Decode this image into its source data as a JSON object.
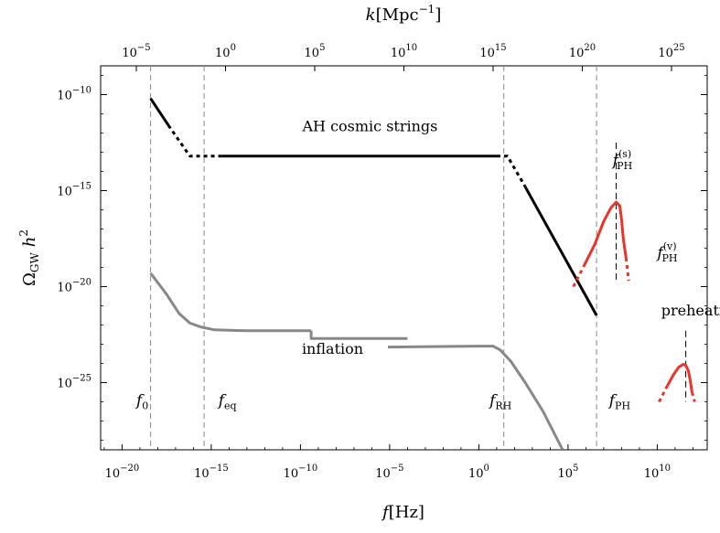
{
  "chart_data": {
    "type": "line",
    "xlabel": "f[Hz]",
    "ylabel": "Ω_GW h^2",
    "top_axis_label": "k[Mpc^-1]",
    "x_scale": "log",
    "y_scale": "log",
    "xlim_log10": [
      -21.2,
      12.8
    ],
    "ylim_log10": [
      -28.5,
      -8.5
    ],
    "x_ticks_log10": [
      -20,
      -15,
      -10,
      -5,
      0,
      5,
      10
    ],
    "x_tick_labels": [
      "10",
      "10",
      "10",
      "10",
      "10",
      "10",
      "10"
    ],
    "x_tick_exps": [
      "−20",
      "−15",
      "−10",
      "−5",
      "0",
      "5",
      "10"
    ],
    "y_ticks_log10": [
      -10,
      -15,
      -20,
      -25
    ],
    "y_tick_labels": [
      "10",
      "10",
      "10",
      "10"
    ],
    "y_tick_exps": [
      "−10",
      "−15",
      "−20",
      "−25"
    ],
    "top_ticks_f_log10": [
      -19.2,
      -14.2,
      -9.2,
      -4.2,
      0.8,
      5.8,
      10.8
    ],
    "top_tick_labels": [
      "10",
      "10",
      "10",
      "10",
      "10",
      "10",
      "10"
    ],
    "top_tick_exps": [
      "−5",
      "0",
      "5",
      "10",
      "15",
      "20",
      "25"
    ],
    "grid": false,
    "legend": "none",
    "colors": {
      "strings": "#000000",
      "inflation": "#888888",
      "preheating": "#e8342a",
      "guides": "#888888"
    },
    "vlines_log10_f": [
      -18.4,
      -15.4,
      1.4,
      6.6
    ],
    "vline_labels": [
      {
        "main": "f",
        "sub": "0",
        "x": -19.2,
        "y": -26.2
      },
      {
        "main": "f",
        "sub": "eq",
        "x": -14.6,
        "y": -26.2
      },
      {
        "main": "f",
        "sub": "RH",
        "x": 0.6,
        "y": -26.2
      },
      {
        "main": "f",
        "sub": "PH",
        "x": 7.3,
        "y": -26.2
      }
    ],
    "peak_markers": [
      {
        "x": 7.7,
        "y_from": -19.7,
        "y_to": -12.5
      },
      {
        "x": 11.6,
        "y_from": -26.0,
        "y_to": -22.3
      }
    ],
    "peak_labels": [
      {
        "main": "f",
        "sub": "PH",
        "sup": "(s)",
        "x": 7.5,
        "y": -13.7
      },
      {
        "main": "f",
        "sub": "PH",
        "sup": "(v)",
        "x": 10.0,
        "y": -18.5
      }
    ],
    "series_labels": [
      {
        "text": "AH cosmic strings",
        "color": "#000000",
        "x": -6.1,
        "y": -11.9,
        "anchor": "middle"
      },
      {
        "text": "inflation",
        "color": "#888888",
        "x": -8.2,
        "y": -23.5,
        "anchor": "middle"
      },
      {
        "text": "preheating",
        "color": "#e8342a",
        "x": 12.5,
        "y": -21.5,
        "anchor": "middle"
      }
    ],
    "series": [
      {
        "name": "AH cosmic strings",
        "color": "#000000",
        "style": "solid",
        "width": 3,
        "points": [
          [
            -18.4,
            -10.2
          ],
          [
            -17.4,
            -11.6
          ]
        ]
      },
      {
        "name": "AH cosmic strings",
        "color": "#000000",
        "style": "dotted",
        "width": 3,
        "points": [
          [
            -17.4,
            -11.6
          ],
          [
            -16.2,
            -13.2
          ],
          [
            -14.4,
            -13.2
          ]
        ]
      },
      {
        "name": "AH cosmic strings",
        "color": "#000000",
        "style": "solid",
        "width": 3,
        "points": [
          [
            -14.4,
            -13.2
          ],
          [
            1.0,
            -13.2
          ]
        ]
      },
      {
        "name": "AH cosmic strings",
        "color": "#000000",
        "style": "dotted",
        "width": 3,
        "points": [
          [
            1.0,
            -13.2
          ],
          [
            1.6,
            -13.2
          ],
          [
            2.6,
            -14.8
          ]
        ]
      },
      {
        "name": "AH cosmic strings",
        "color": "#000000",
        "style": "solid",
        "width": 3,
        "points": [
          [
            2.6,
            -14.8
          ],
          [
            6.6,
            -21.5
          ]
        ]
      },
      {
        "name": "inflation",
        "color": "#888888",
        "style": "solid",
        "width": 3,
        "points": [
          [
            -18.4,
            -19.3
          ],
          [
            -17.5,
            -20.4
          ],
          [
            -16.8,
            -21.4
          ],
          [
            -16.2,
            -21.9
          ],
          [
            -15.6,
            -22.1
          ],
          [
            -14.8,
            -22.25
          ],
          [
            -13.0,
            -22.3
          ],
          [
            -9.4,
            -22.3
          ]
        ]
      },
      {
        "name": "inflation",
        "color": "#888888",
        "style": "solid",
        "width": 3,
        "points": [
          [
            -9.4,
            -22.3
          ],
          [
            -9.4,
            -22.7
          ],
          [
            -4.0,
            -22.7
          ]
        ]
      },
      {
        "name": "inflation",
        "color": "#888888",
        "style": "solid",
        "width": 3,
        "points": [
          [
            -5.1,
            -23.15
          ],
          [
            0.0,
            -23.1
          ],
          [
            0.8,
            -23.1
          ],
          [
            1.2,
            -23.3
          ],
          [
            1.8,
            -23.9
          ],
          [
            2.6,
            -25.0
          ],
          [
            3.6,
            -26.5
          ],
          [
            4.7,
            -28.5
          ]
        ]
      },
      {
        "name": "preheating",
        "color": "#e8342a",
        "style": "dotted",
        "width": 3,
        "points": [
          [
            5.3,
            -20.0
          ],
          [
            5.9,
            -18.9
          ]
        ]
      },
      {
        "name": "preheating",
        "color": "#e8342a",
        "style": "solid",
        "width": 3,
        "points": [
          [
            5.9,
            -18.9
          ],
          [
            6.5,
            -17.8
          ],
          [
            7.0,
            -16.6
          ],
          [
            7.4,
            -15.9
          ],
          [
            7.7,
            -15.6
          ],
          [
            7.9,
            -15.8
          ],
          [
            8.0,
            -16.5
          ],
          [
            8.1,
            -17.5
          ],
          [
            8.25,
            -18.5
          ]
        ]
      },
      {
        "name": "preheating",
        "color": "#e8342a",
        "style": "dotted",
        "width": 3,
        "points": [
          [
            8.25,
            -18.5
          ],
          [
            8.4,
            -19.7
          ]
        ]
      },
      {
        "name": "preheating",
        "color": "#e8342a",
        "style": "dotted",
        "width": 3,
        "points": [
          [
            10.1,
            -26.0
          ],
          [
            10.55,
            -25.2
          ]
        ]
      },
      {
        "name": "preheating",
        "color": "#e8342a",
        "style": "solid",
        "width": 3,
        "points": [
          [
            10.55,
            -25.2
          ],
          [
            10.9,
            -24.6
          ],
          [
            11.2,
            -24.2
          ],
          [
            11.45,
            -24.05
          ],
          [
            11.6,
            -24.1
          ],
          [
            11.75,
            -24.4
          ],
          [
            11.85,
            -24.9
          ],
          [
            11.95,
            -25.5
          ]
        ]
      },
      {
        "name": "preheating",
        "color": "#e8342a",
        "style": "dotted",
        "width": 3,
        "points": [
          [
            11.95,
            -25.5
          ],
          [
            12.1,
            -26.0
          ]
        ]
      }
    ]
  }
}
